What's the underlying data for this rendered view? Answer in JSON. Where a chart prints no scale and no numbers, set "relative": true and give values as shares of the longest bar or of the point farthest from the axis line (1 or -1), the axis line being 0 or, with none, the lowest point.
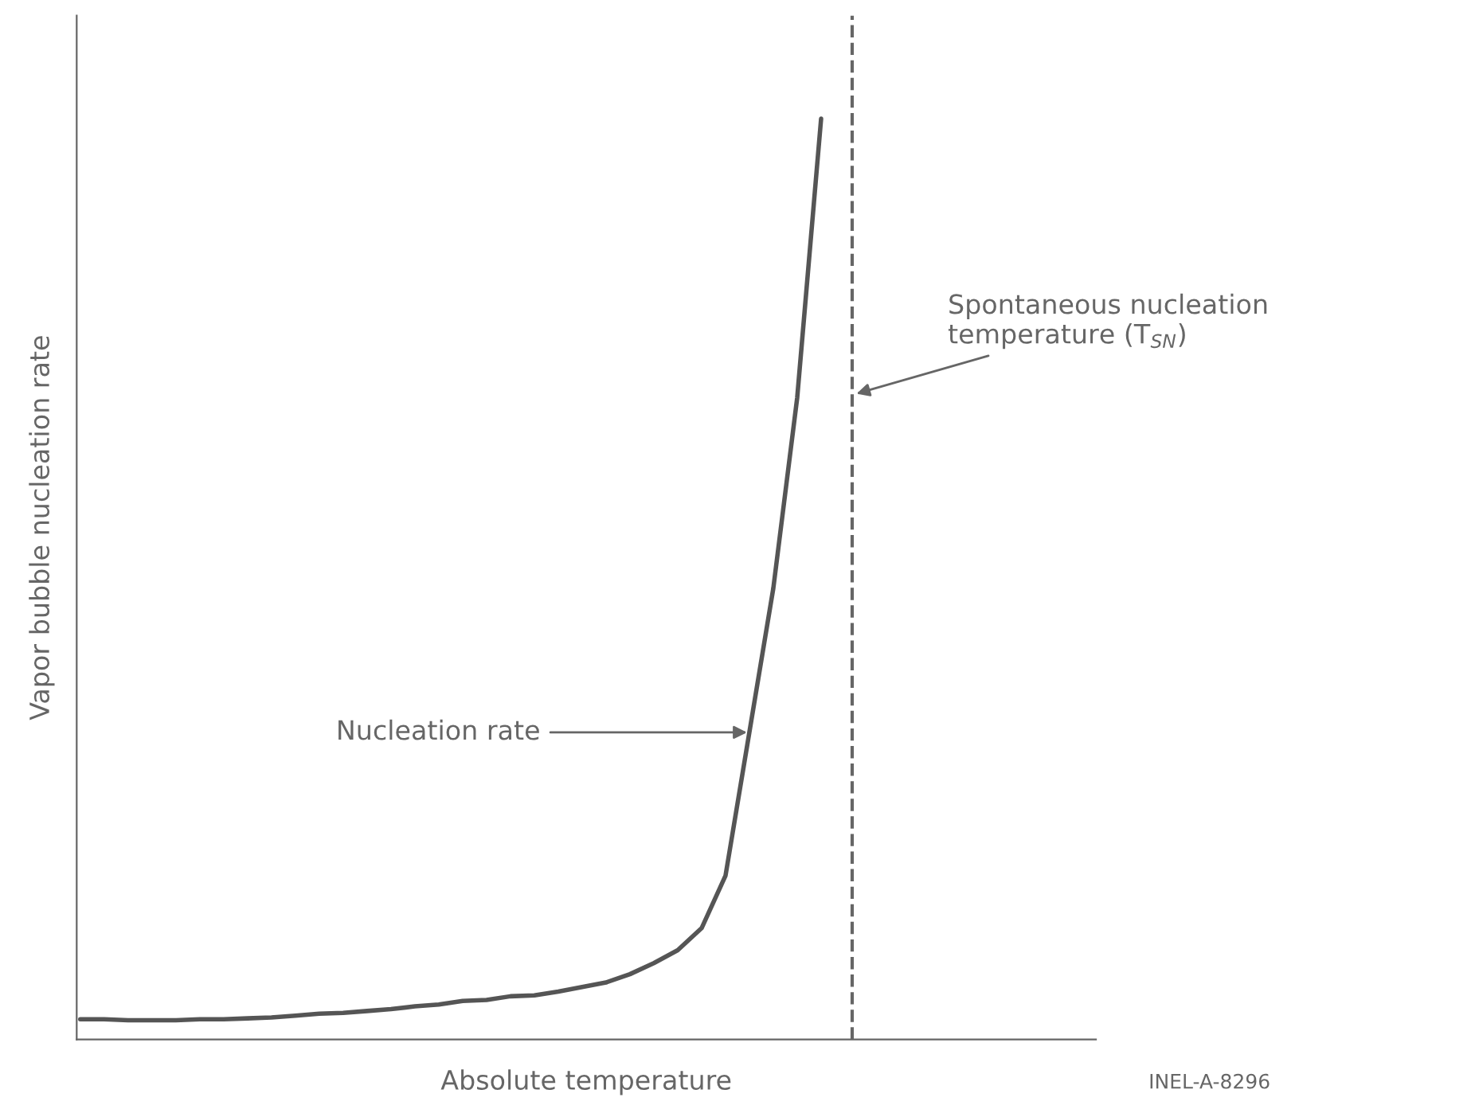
{
  "chart_data": {
    "type": "line",
    "relative": true,
    "xlabel": "Absolute temperature",
    "ylabel": "Vapor bubble nucleation rate",
    "categories": [
      null,
      null,
      null,
      null,
      null,
      null,
      null,
      null,
      null,
      null,
      null,
      null,
      null,
      null,
      null,
      null,
      null,
      null,
      null,
      null,
      null,
      null,
      null,
      null,
      null,
      null,
      null,
      null,
      null,
      null,
      null,
      null,
      null,
      null,
      null,
      null,
      null,
      null,
      null,
      null,
      null,
      null,
      null
    ],
    "series": [
      {
        "color": "#555555",
        "values": [
          0.022,
          0.022,
          0.021,
          0.021,
          0.021,
          0.022,
          0.022,
          0.023,
          0.024,
          0.026,
          0.028,
          0.029,
          0.031,
          0.033,
          0.036,
          0.038,
          0.042,
          0.043,
          0.047,
          0.048,
          0.052,
          0.057,
          0.062,
          0.071,
          0.083,
          0.097,
          0.121,
          0.178,
          0.334,
          0.49,
          0.697,
          1,
          null,
          null,
          null,
          null,
          null,
          null,
          null,
          null,
          null,
          null,
          null
        ]
      }
    ],
    "annotations": [
      "Nucleation rate",
      "Spontaneous nucleation\ntemperature (T$_{SN}$)",
      "INEL-A-8296"
    ],
    "grid": false,
    "legend": false,
    "marker": "none",
    "line_style": "solid"
  }
}
